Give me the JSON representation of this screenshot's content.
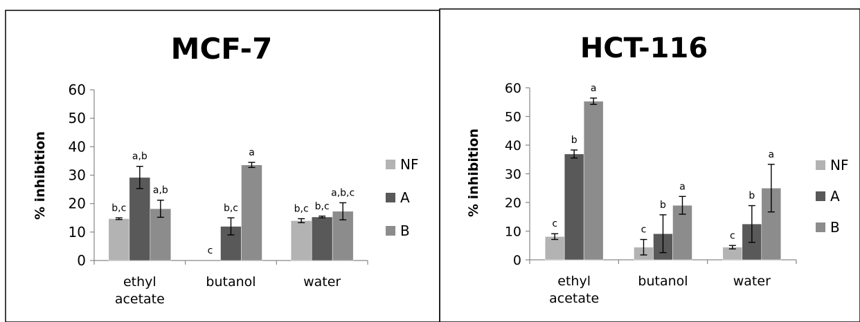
{
  "chart_data": [
    {
      "type": "bar",
      "title": "MCF-7",
      "xlabel": "",
      "ylabel": "% inhibition",
      "ylim": [
        0,
        60
      ],
      "yticks": [
        "0",
        "10",
        "20",
        "30",
        "40",
        "50",
        "60"
      ],
      "categories": [
        [
          "ethyl",
          "acetate"
        ],
        [
          "butanol"
        ],
        [
          "water"
        ]
      ],
      "legend_position": "right",
      "grid": false,
      "series": [
        {
          "name": "NF",
          "color": "#b3b3b3",
          "values": [
            14.7,
            0,
            14.0
          ],
          "errors": [
            0.3,
            0,
            0.7
          ],
          "letters": [
            "b,c",
            "c",
            "b,c"
          ]
        },
        {
          "name": "A",
          "color": "#595959",
          "values": [
            29.2,
            12.0,
            15.3
          ],
          "errors": [
            3.9,
            3.0,
            0.3
          ],
          "letters": [
            "a,b",
            "b,c",
            "b,c"
          ]
        },
        {
          "name": "B",
          "color": "#8c8c8c",
          "values": [
            18.2,
            33.6,
            17.3
          ],
          "errors": [
            3.0,
            0.9,
            3.0
          ],
          "letters": [
            "a,b",
            "a",
            "a,b,c"
          ]
        }
      ]
    },
    {
      "type": "bar",
      "title": "HCT-116",
      "xlabel": "",
      "ylabel": "% inhibition",
      "ylim": [
        0,
        60
      ],
      "yticks": [
        "0",
        "10",
        "20",
        "30",
        "40",
        "50",
        "60"
      ],
      "categories": [
        [
          "ethyl",
          "acetate"
        ],
        [
          "butanol"
        ],
        [
          "water"
        ]
      ],
      "legend_position": "right",
      "grid": false,
      "series": [
        {
          "name": "NF",
          "color": "#b3b3b3",
          "values": [
            8.1,
            4.4,
            4.4
          ],
          "errors": [
            1.0,
            2.7,
            0.6
          ],
          "letters": [
            "c",
            "c",
            "c"
          ]
        },
        {
          "name": "A",
          "color": "#595959",
          "values": [
            36.9,
            9.1,
            12.5
          ],
          "errors": [
            1.4,
            6.6,
            6.4
          ],
          "letters": [
            "b",
            "b",
            "b"
          ]
        },
        {
          "name": "B",
          "color": "#8c8c8c",
          "values": [
            55.3,
            19.0,
            25.0
          ],
          "errors": [
            1.1,
            3.1,
            8.3
          ],
          "letters": [
            "a",
            "a",
            "a"
          ]
        }
      ]
    }
  ]
}
